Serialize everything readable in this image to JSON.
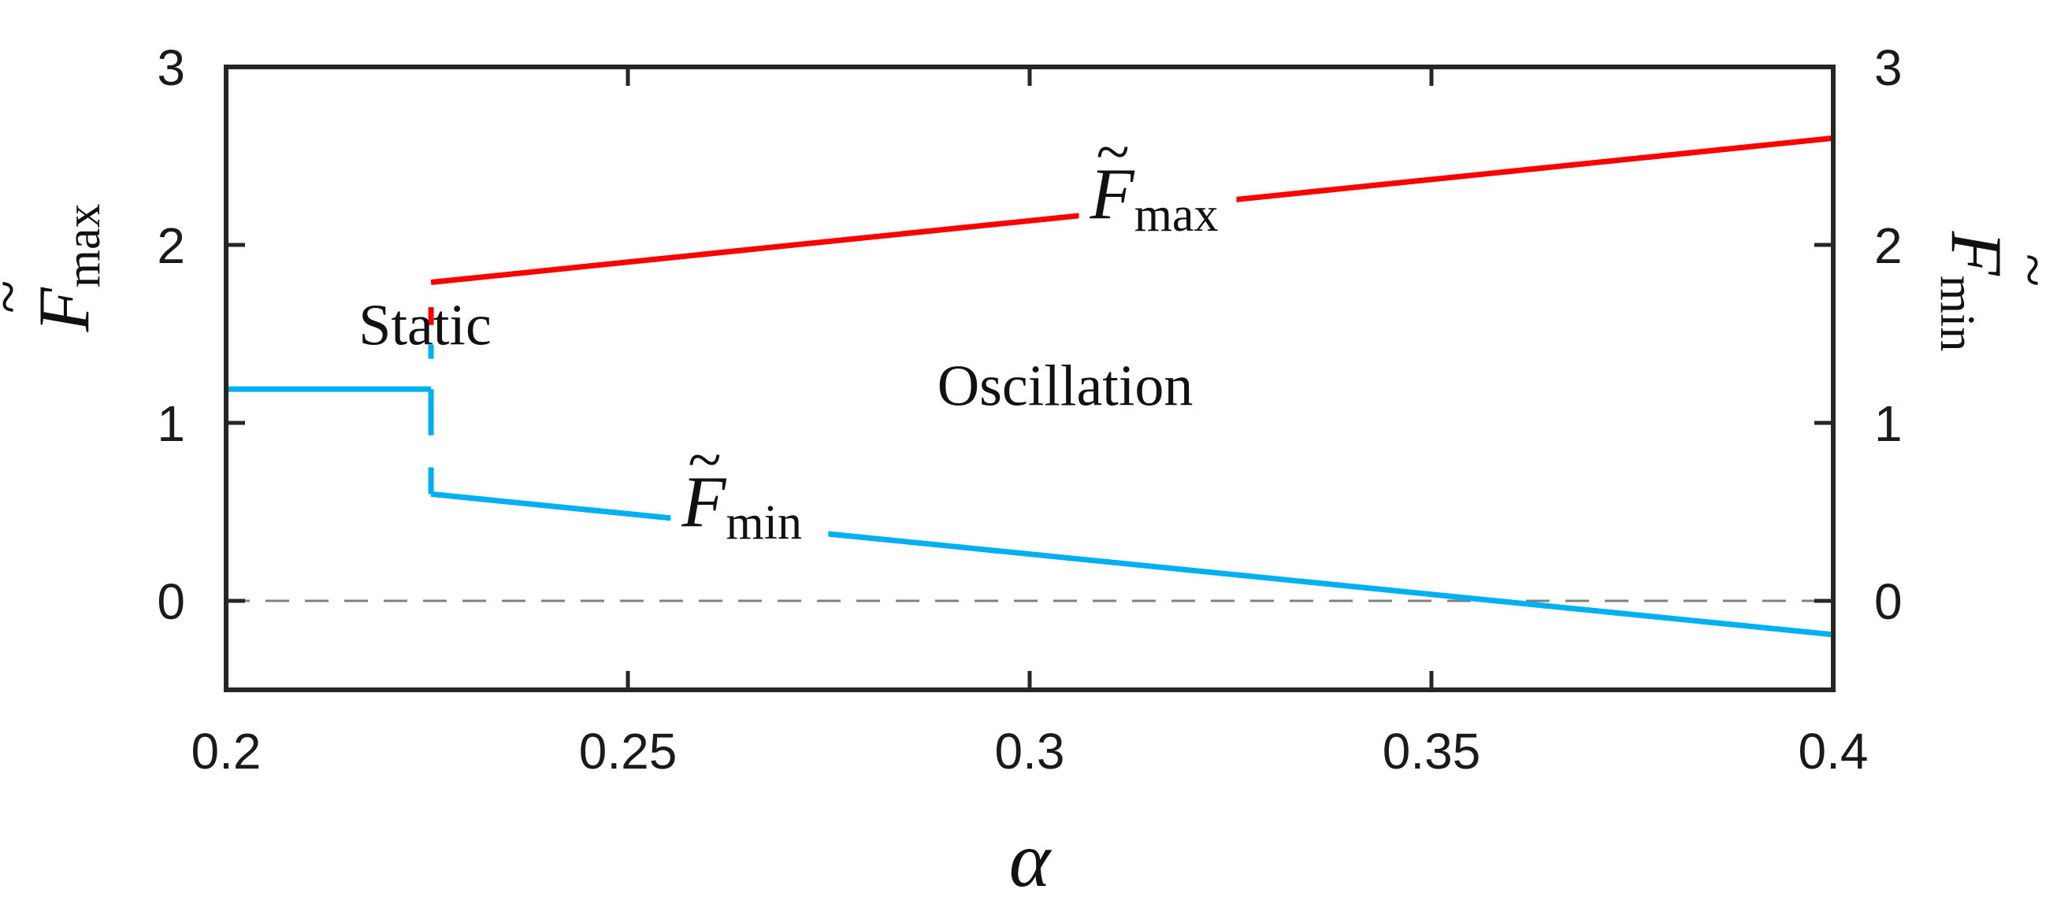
{
  "chart_data": {
    "type": "line",
    "title": "",
    "xlabel": "α",
    "x_range": [
      0.2,
      0.4
    ],
    "ylim_left": [
      -0.5,
      3
    ],
    "ylim_right": [
      -0.5,
      3
    ],
    "x_ticks": [
      0.2,
      0.25,
      0.3,
      0.35,
      0.4
    ],
    "x_tick_labels": [
      "0.2",
      "0.25",
      "0.3",
      "0.35",
      "0.4"
    ],
    "y_ticks": [
      0,
      1,
      2,
      3
    ],
    "y_tick_labels_left": [
      "0",
      "1",
      "2",
      "3"
    ],
    "y_tick_labels_right": [
      "0",
      "1",
      "2",
      "3"
    ],
    "ylabel_left": {
      "symbol": "F",
      "accent": "~",
      "subscript": "max"
    },
    "ylabel_right": {
      "symbol": "F",
      "accent": "~",
      "subscript": "min"
    },
    "grid": false,
    "reference_line": {
      "y": 0,
      "style": "dashed",
      "color": "#808080"
    },
    "series": [
      {
        "name": "F_max",
        "color": "#ff0000",
        "segments": [
          [
            [
              0.2255,
              1.55
            ],
            [
              0.2255,
              1.65
            ]
          ],
          [
            [
              0.2255,
              1.79
            ],
            [
              0.4,
              2.6
            ]
          ]
        ]
      },
      {
        "name": "F_min",
        "color": "#00b0f0",
        "segments": [
          [
            [
              0.2255,
              1.36
            ],
            [
              0.2255,
              1.44
            ]
          ],
          [
            [
              0.2,
              1.19
            ],
            [
              0.2255,
              1.19
            ]
          ],
          [
            [
              0.2255,
              0.93
            ],
            [
              0.2255,
              1.19
            ]
          ],
          [
            [
              0.2255,
              0.6
            ],
            [
              0.2255,
              0.75
            ]
          ],
          [
            [
              0.2255,
              0.6
            ],
            [
              0.4,
              -0.19
            ]
          ]
        ]
      }
    ],
    "annotations": [
      {
        "text": "Static",
        "x": 0.2165,
        "y": 1.44,
        "style": "serif"
      },
      {
        "text": "Oscillation",
        "x": 0.2885,
        "y": 1.1,
        "style": "serif"
      },
      {
        "symbol": "F",
        "accent": "~",
        "subscript": "max",
        "x": 0.3075,
        "y": 2.15,
        "series": "F_max"
      },
      {
        "symbol": "F",
        "accent": "~",
        "subscript": "min",
        "x": 0.2567,
        "y": 0.42,
        "series": "F_min"
      }
    ]
  }
}
